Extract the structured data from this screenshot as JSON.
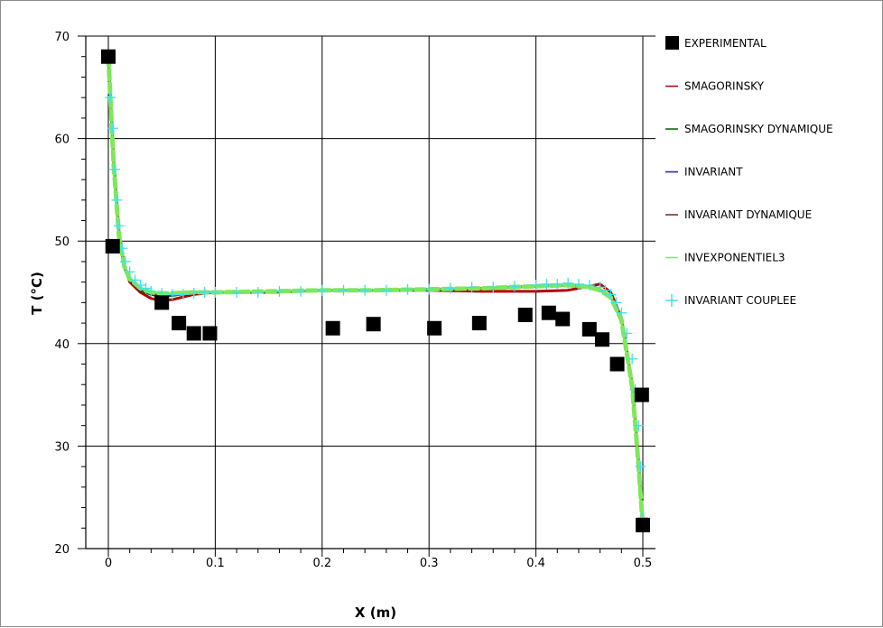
{
  "chart_data": {
    "type": "line",
    "xlabel": "X (m)",
    "ylabel": "T (°C)",
    "xlim": [
      0,
      0.5
    ],
    "ylim": [
      20,
      70
    ],
    "xticks": [
      0,
      0.1,
      0.2,
      0.3,
      0.4,
      0.5
    ],
    "xtick_labels": [
      "0",
      "0.1",
      "0.2",
      "0.3",
      "0.4",
      "0.5"
    ],
    "yticks": [
      20,
      30,
      40,
      50,
      60,
      70
    ],
    "ytick_labels": [
      "20",
      "30",
      "40",
      "50",
      "60",
      "70"
    ],
    "grid": true,
    "legend_position": "right",
    "series": [
      {
        "name": "EXPERIMENTAL",
        "kind": "marker-square",
        "color": "#000000",
        "x": [
          0,
          0.004,
          0.05,
          0.066,
          0.08,
          0.095,
          0.21,
          0.248,
          0.305,
          0.347,
          0.39,
          0.412,
          0.425,
          0.45,
          0.462,
          0.476,
          0.499,
          0.5
        ],
        "y": [
          68,
          49.5,
          44,
          42,
          41,
          41,
          41.5,
          41.9,
          41.5,
          42,
          42.8,
          43,
          42.4,
          41.4,
          40.4,
          38,
          35,
          22.3
        ]
      },
      {
        "name": "SMAGORINSKY",
        "kind": "line",
        "color": "#b00000",
        "width": 3,
        "x": [
          0,
          0.005,
          0.01,
          0.015,
          0.02,
          0.03,
          0.04,
          0.05,
          0.06,
          0.08,
          0.1,
          0.15,
          0.2,
          0.25,
          0.3,
          0.35,
          0.4,
          0.43,
          0.45,
          0.46,
          0.47,
          0.48,
          0.49,
          0.495,
          0.5
        ],
        "y": [
          68,
          58,
          51,
          47.5,
          46,
          45,
          44.4,
          44.2,
          44.3,
          44.8,
          45,
          45,
          45.2,
          45.2,
          45.2,
          45.1,
          45.1,
          45.2,
          45.6,
          45.8,
          45,
          42.5,
          36,
          30,
          22.3
        ]
      },
      {
        "name": "SMAGORINSKY DYNAMIQUE",
        "kind": "line",
        "color": "#006000",
        "width": 3,
        "x": [
          0,
          0.005,
          0.01,
          0.015,
          0.02,
          0.03,
          0.04,
          0.05,
          0.06,
          0.08,
          0.1,
          0.15,
          0.2,
          0.25,
          0.3,
          0.35,
          0.4,
          0.43,
          0.45,
          0.46,
          0.47,
          0.48,
          0.49,
          0.495,
          0.5
        ],
        "y": [
          68,
          57.5,
          50.5,
          47.5,
          46.2,
          45.2,
          44.8,
          44.6,
          44.7,
          45,
          45,
          45,
          45.2,
          45.2,
          45.3,
          45.4,
          45.6,
          45.7,
          45.6,
          45.3,
          44.6,
          42.5,
          36,
          29.5,
          22.3
        ]
      },
      {
        "name": "INVARIANT",
        "kind": "line",
        "color": "#1a1aa0",
        "width": 2,
        "x": [
          0,
          0.005,
          0.01,
          0.015,
          0.02,
          0.03,
          0.04,
          0.05,
          0.06,
          0.08,
          0.1,
          0.15,
          0.2,
          0.25,
          0.3,
          0.35,
          0.4,
          0.43,
          0.45,
          0.46,
          0.47,
          0.48,
          0.49,
          0.495,
          0.5
        ],
        "y": [
          68,
          57,
          50,
          47.3,
          46.2,
          45.3,
          44.9,
          44.8,
          44.8,
          45,
          45,
          45,
          45.2,
          45.2,
          45.3,
          45.4,
          45.6,
          45.7,
          45.5,
          45.2,
          44.5,
          42.4,
          36,
          29.5,
          22.3
        ]
      },
      {
        "name": "INVARIANT DYNAMIQUE",
        "kind": "line",
        "color": "#8b1a1a",
        "width": 2,
        "x": [
          0,
          0.005,
          0.01,
          0.015,
          0.02,
          0.03,
          0.04,
          0.05,
          0.06,
          0.08,
          0.1,
          0.15,
          0.2,
          0.25,
          0.3,
          0.35,
          0.4,
          0.43,
          0.45,
          0.46,
          0.47,
          0.48,
          0.49,
          0.495,
          0.5
        ],
        "y": [
          68,
          57.2,
          50.2,
          47.4,
          46.2,
          45.3,
          44.9,
          44.7,
          44.8,
          45,
          45,
          45,
          45.2,
          45.2,
          45.3,
          45.4,
          45.6,
          45.7,
          45.5,
          45.2,
          44.5,
          42.4,
          36,
          29.5,
          22.3
        ]
      },
      {
        "name": "INVEXPONENTIEL3",
        "kind": "line",
        "color": "#7fe85a",
        "width": 5,
        "dash": true,
        "x": [
          0,
          0.005,
          0.01,
          0.015,
          0.02,
          0.03,
          0.04,
          0.05,
          0.06,
          0.08,
          0.1,
          0.15,
          0.2,
          0.25,
          0.3,
          0.35,
          0.4,
          0.43,
          0.45,
          0.46,
          0.47,
          0.48,
          0.49,
          0.495,
          0.5
        ],
        "y": [
          68,
          57.5,
          50.5,
          47.5,
          46.3,
          45.4,
          45,
          44.9,
          44.9,
          45,
          45,
          45.1,
          45.2,
          45.2,
          45.3,
          45.4,
          45.6,
          45.7,
          45.5,
          45.2,
          44.5,
          42.3,
          35.8,
          29.4,
          22.3
        ]
      },
      {
        "name": "INVARIANT COUPLEE",
        "kind": "marker-plus",
        "color": "#40e0f0",
        "x": [
          0,
          0.002,
          0.004,
          0.006,
          0.008,
          0.01,
          0.013,
          0.016,
          0.02,
          0.025,
          0.03,
          0.035,
          0.04,
          0.05,
          0.06,
          0.07,
          0.08,
          0.09,
          0.1,
          0.12,
          0.14,
          0.16,
          0.18,
          0.2,
          0.22,
          0.24,
          0.26,
          0.28,
          0.3,
          0.32,
          0.34,
          0.36,
          0.38,
          0.4,
          0.41,
          0.42,
          0.43,
          0.44,
          0.45,
          0.46,
          0.465,
          0.47,
          0.475,
          0.48,
          0.485,
          0.49,
          0.493,
          0.496,
          0.498,
          0.5
        ],
        "y": [
          68,
          64,
          61,
          57,
          54,
          51.5,
          49.3,
          48,
          47,
          46.2,
          45.7,
          45.4,
          45.1,
          44.9,
          44.8,
          44.8,
          44.9,
          45,
          45,
          45,
          45,
          45.1,
          45.1,
          45.2,
          45.2,
          45.2,
          45.2,
          45.3,
          45.3,
          45.4,
          45.5,
          45.5,
          45.6,
          45.7,
          45.8,
          45.8,
          45.9,
          45.8,
          45.7,
          45.5,
          45.2,
          44.8,
          44,
          43,
          41,
          38.5,
          35.5,
          32,
          28,
          23
        ]
      }
    ]
  }
}
